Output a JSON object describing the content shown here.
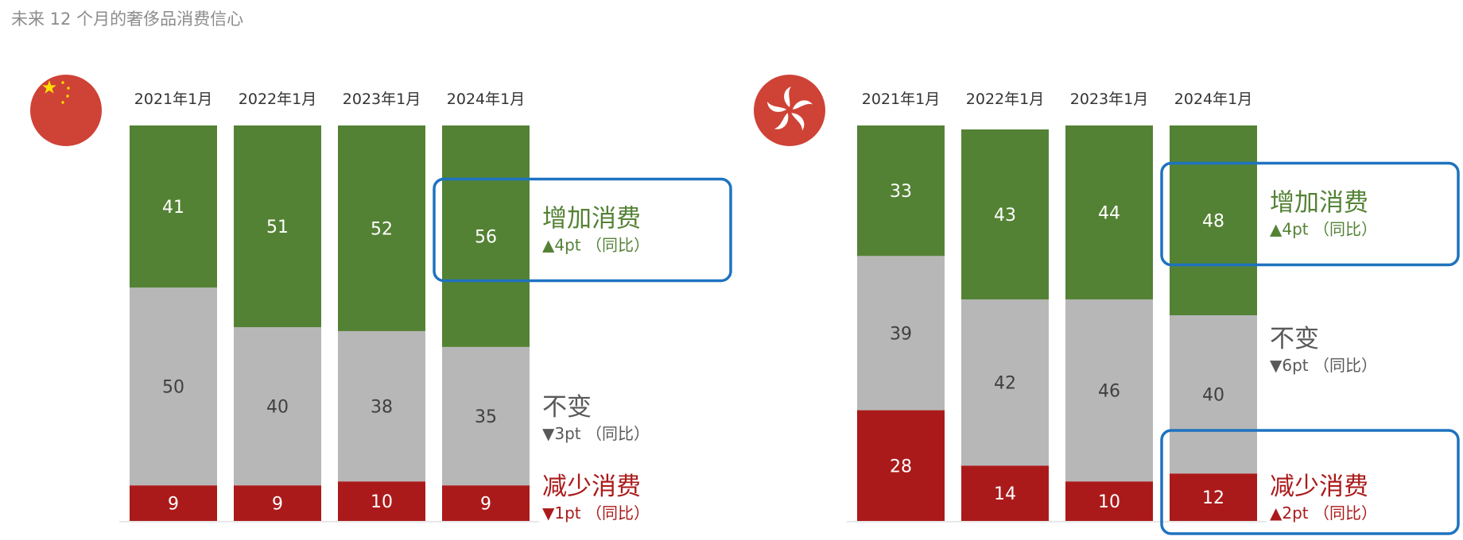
{
  "title": "未来 12 个月的奢侈品消费信心",
  "colors": {
    "increase": "#548235",
    "unchanged": "#b7b7b7",
    "decrease": "#ab1a1a",
    "highlight": "#1f73bf",
    "flag": "#cf4236",
    "star": "#ffde00"
  },
  "chart_data": [
    {
      "type": "bar",
      "stacked": true,
      "region_icon": "china-flag-icon",
      "categories": [
        "2021年1月",
        "2022年1月",
        "2023年1月",
        "2024年1月"
      ],
      "series": [
        {
          "name": "减少消费",
          "key": "decrease",
          "values": [
            9,
            9,
            10,
            9
          ],
          "change": "▼1pt （同比）"
        },
        {
          "name": "不变",
          "key": "unchanged",
          "values": [
            50,
            40,
            38,
            35
          ],
          "change": "▼3pt （同比）"
        },
        {
          "name": "增加消费",
          "key": "increase",
          "values": [
            41,
            51,
            52,
            56
          ],
          "change": "▲4pt （同比）"
        }
      ],
      "highlighted": [
        "increase"
      ],
      "ylim": [
        0,
        100
      ]
    },
    {
      "type": "bar",
      "stacked": true,
      "region_icon": "hong-kong-flag-icon",
      "categories": [
        "2021年1月",
        "2022年1月",
        "2023年1月",
        "2024年1月"
      ],
      "series": [
        {
          "name": "减少消费",
          "key": "decrease",
          "values": [
            28,
            14,
            10,
            12
          ],
          "change": "▲2pt （同比）"
        },
        {
          "name": "不变",
          "key": "unchanged",
          "values": [
            39,
            42,
            46,
            40
          ],
          "change": "▼6pt （同比）"
        },
        {
          "name": "增加消费",
          "key": "increase",
          "values": [
            33,
            43,
            44,
            48
          ],
          "change": "▲4pt （同比）"
        }
      ],
      "highlighted": [
        "increase",
        "decrease"
      ],
      "ylim": [
        0,
        100
      ]
    }
  ]
}
